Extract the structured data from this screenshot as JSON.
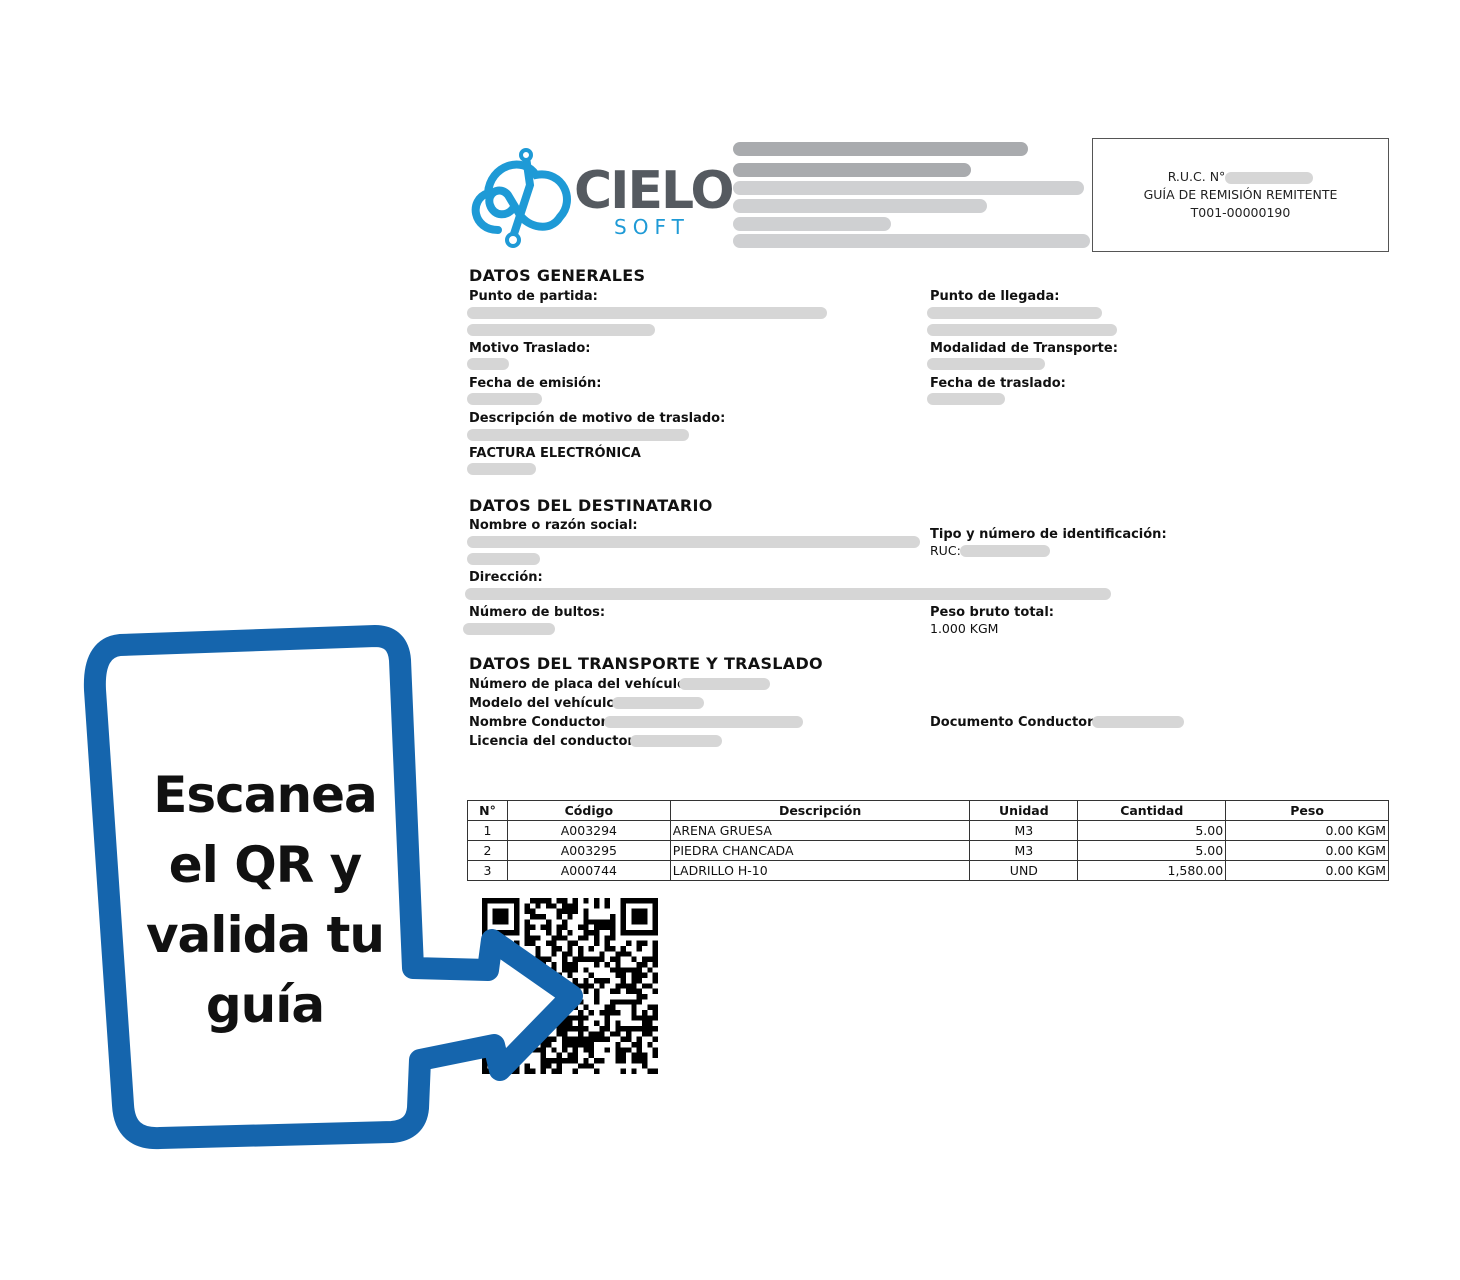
{
  "logo": {
    "text_main": "CIELO",
    "text_sub": "SOFT",
    "brand_color": "#1e9ad6"
  },
  "ruc_box": {
    "ruc_label": "R.U.C. N°",
    "doc_type": "GUÍA DE REMISIÓN REMITENTE",
    "doc_number": "T001-00000190"
  },
  "datos_generales": {
    "title": "DATOS GENERALES",
    "punto_partida": "Punto de partida:",
    "punto_llegada": "Punto de llegada:",
    "motivo_traslado": "Motivo Traslado:",
    "modalidad_transporte": "Modalidad de Transporte:",
    "fecha_emision": "Fecha de emisión:",
    "fecha_traslado": "Fecha de traslado:",
    "descripcion_motivo": "Descripción de motivo de traslado:",
    "factura": "FACTURA ELECTRÓNICA"
  },
  "destinatario": {
    "title": "DATOS DEL DESTINATARIO",
    "nombre": "Nombre o razón social:",
    "tipo_id": "Tipo y número de identificación:",
    "ruc": "RUC:",
    "direccion": "Dirección:",
    "bultos": "Número de bultos:",
    "peso_label": "Peso bruto total:",
    "peso_value": "1.000 KGM"
  },
  "transporte": {
    "title": "DATOS DEL TRANSPORTE Y TRASLADO",
    "placa": "Número de placa del vehículo:",
    "modelo": "Modelo del vehículo:",
    "conductor": "Nombre Conductor:",
    "documento": "Documento Conductor:",
    "licencia": "Licencia del conductor:"
  },
  "items_table": {
    "headers": [
      "N°",
      "Código",
      "Descripción",
      "Unidad",
      "Cantidad",
      "Peso"
    ],
    "rows": [
      [
        "1",
        "A003294",
        "ARENA GRUESA",
        "M3",
        "5.00",
        "0.00 KGM"
      ],
      [
        "2",
        "A003295",
        "PIEDRA CHANCADA",
        "M3",
        "5.00",
        "0.00 KGM"
      ],
      [
        "3",
        "A000744",
        "LADRILLO H-10",
        "UND",
        "1,580.00",
        "0.00 KGM"
      ]
    ]
  },
  "callout": {
    "line1": "Escanea",
    "line2": "el QR y",
    "line3": "valida tu",
    "line4": "guía",
    "stroke_color": "#1565ad"
  }
}
